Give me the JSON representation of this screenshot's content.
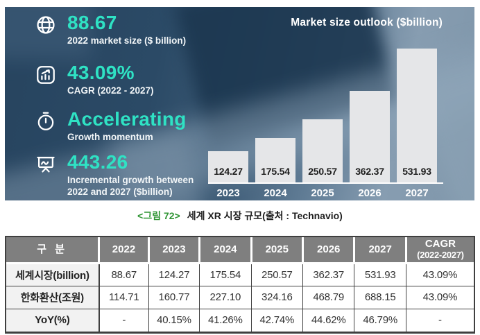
{
  "banner": {
    "accent_color": "#2fe2c4",
    "stats": [
      {
        "icon": "globe-icon",
        "value": "88.67",
        "label": "2022 market size ($ billion)"
      },
      {
        "icon": "growth-chart-icon",
        "value": "43.09%",
        "label": "CAGR (2022 - 2027)"
      },
      {
        "icon": "stopwatch-icon",
        "value": "Accelerating",
        "label": "Growth momentum"
      },
      {
        "icon": "presentation-chart-icon",
        "value": "443.26",
        "label": "Incremental growth between 2022 and 2027 ($billion)"
      }
    ]
  },
  "chart_data": {
    "type": "bar",
    "title": "Market size outlook ($billion)",
    "categories": [
      "2023",
      "2024",
      "2025",
      "2026",
      "2027"
    ],
    "values": [
      124.27,
      175.54,
      250.57,
      362.37,
      531.93
    ],
    "bar_color": "#e5e6e8",
    "value_label_position": "inside-bottom",
    "xlabel": "",
    "ylabel": "",
    "ylim": [
      0,
      560
    ],
    "grid": false,
    "legend": "none"
  },
  "caption": {
    "figure_label": "<그림 72>",
    "title": "세계 XR 시장 규모(출처 : Technavio)"
  },
  "table": {
    "header_bg": "#7f7f7f",
    "columns": [
      "구 분",
      "2022",
      "2023",
      "2024",
      "2025",
      "2026",
      "2027",
      "CAGR\n(2022-2027)"
    ],
    "rows": [
      {
        "label": "세계시장(billion)",
        "cells": [
          "88.67",
          "124.27",
          "175.54",
          "250.57",
          "362.37",
          "531.93",
          "43.09%"
        ]
      },
      {
        "label": "한화환산(조원)",
        "cells": [
          "114.71",
          "160.77",
          "227.10",
          "324.16",
          "468.79",
          "688.15",
          "43.09%"
        ]
      },
      {
        "label": "YoY(%)",
        "cells": [
          "-",
          "40.15%",
          "41.26%",
          "42.74%",
          "44.62%",
          "46.79%",
          "-"
        ]
      }
    ]
  }
}
